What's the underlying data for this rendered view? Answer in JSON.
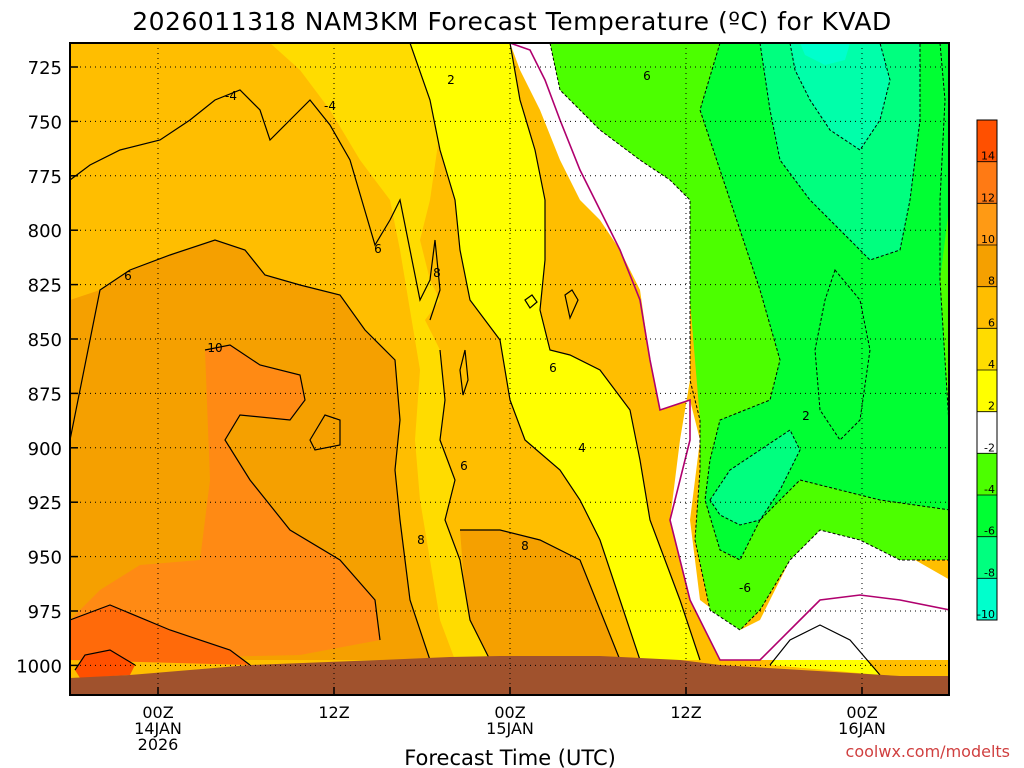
{
  "chart_data": {
    "type": "time-height contour",
    "title": "2026011318 NAM3KM Forecast Temperature (ºC) for KVAD",
    "xlabel": "Forecast Time (UTC)",
    "ylabel": "",
    "y_ticks": [
      "725",
      "750",
      "775",
      "800",
      "825",
      "850",
      "875",
      "900",
      "925",
      "950",
      "975",
      "1000"
    ],
    "x_ticks": [
      {
        "lines": [
          "00Z",
          "14JAN",
          "2026"
        ]
      },
      {
        "lines": [
          "12Z"
        ]
      },
      {
        "lines": [
          "00Z",
          "15JAN"
        ]
      },
      {
        "lines": [
          "12Z"
        ]
      },
      {
        "lines": [
          "00Z",
          "16JAN"
        ]
      }
    ],
    "colorbar": {
      "labels": [
        "14",
        "12",
        "10",
        "8",
        "6",
        "4",
        "2",
        "-2",
        "-4",
        "-6",
        "-8",
        "-10"
      ],
      "colors": [
        "#ff5000",
        "#ff7a14",
        "#ff9a14",
        "#f5a000",
        "#ffbe00",
        "#ffdc00",
        "#ffff00",
        "#ffffff",
        "#4cff00",
        "#00ff33",
        "#00ff7f",
        "#00ffcc"
      ]
    },
    "contour_labels": [
      "2",
      "6",
      "-4",
      "6",
      "8",
      "6",
      "10",
      "6",
      "2",
      "4",
      "6",
      "8",
      "8",
      "-6",
      "-4"
    ],
    "grid": true,
    "ground_color": "#a0522d",
    "credit": "coolwx.com/modelts"
  }
}
